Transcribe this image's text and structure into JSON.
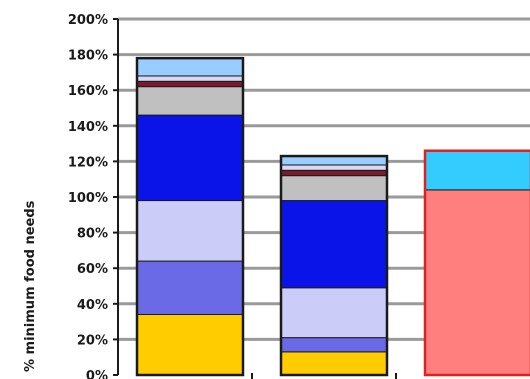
{
  "chart_data": {
    "type": "bar",
    "stacked": true,
    "ylabel": "% minimum food needs",
    "xlabel": "",
    "ylim": [
      0,
      200
    ],
    "ytick_step": 20,
    "ytick_suffix": "%",
    "grid": true,
    "gridline_color": "#9a9a9a",
    "categories": [
      "",
      "",
      ""
    ],
    "bars": [
      {
        "outline": "#1a1a1a",
        "segments": [
          {
            "value": 34,
            "color": "#ffcc00"
          },
          {
            "value": 30,
            "color": "#6a6ae6"
          },
          {
            "value": 34,
            "color": "#ccccf8"
          },
          {
            "value": 48,
            "color": "#0a14e8"
          },
          {
            "value": 16,
            "color": "#c0c0c0"
          },
          {
            "value": 3,
            "color": "#7a1a2a"
          },
          {
            "value": 3,
            "color": "#d8d8f8"
          },
          {
            "value": 10,
            "color": "#99ccff"
          }
        ]
      },
      {
        "outline": "#1a1a1a",
        "segments": [
          {
            "value": 13,
            "color": "#ffcc00"
          },
          {
            "value": 8,
            "color": "#6a6ae6"
          },
          {
            "value": 28,
            "color": "#ccccf8"
          },
          {
            "value": 49,
            "color": "#0a14e8"
          },
          {
            "value": 14,
            "color": "#c0c0c0"
          },
          {
            "value": 3,
            "color": "#7a1a2a"
          },
          {
            "value": 3,
            "color": "#d8d8f8"
          },
          {
            "value": 5,
            "color": "#99ccff"
          }
        ]
      },
      {
        "outline": "#dd2222",
        "segments": [
          {
            "value": 104,
            "color": "#ff7f7f"
          },
          {
            "value": 22,
            "color": "#33ccff"
          }
        ]
      }
    ]
  }
}
